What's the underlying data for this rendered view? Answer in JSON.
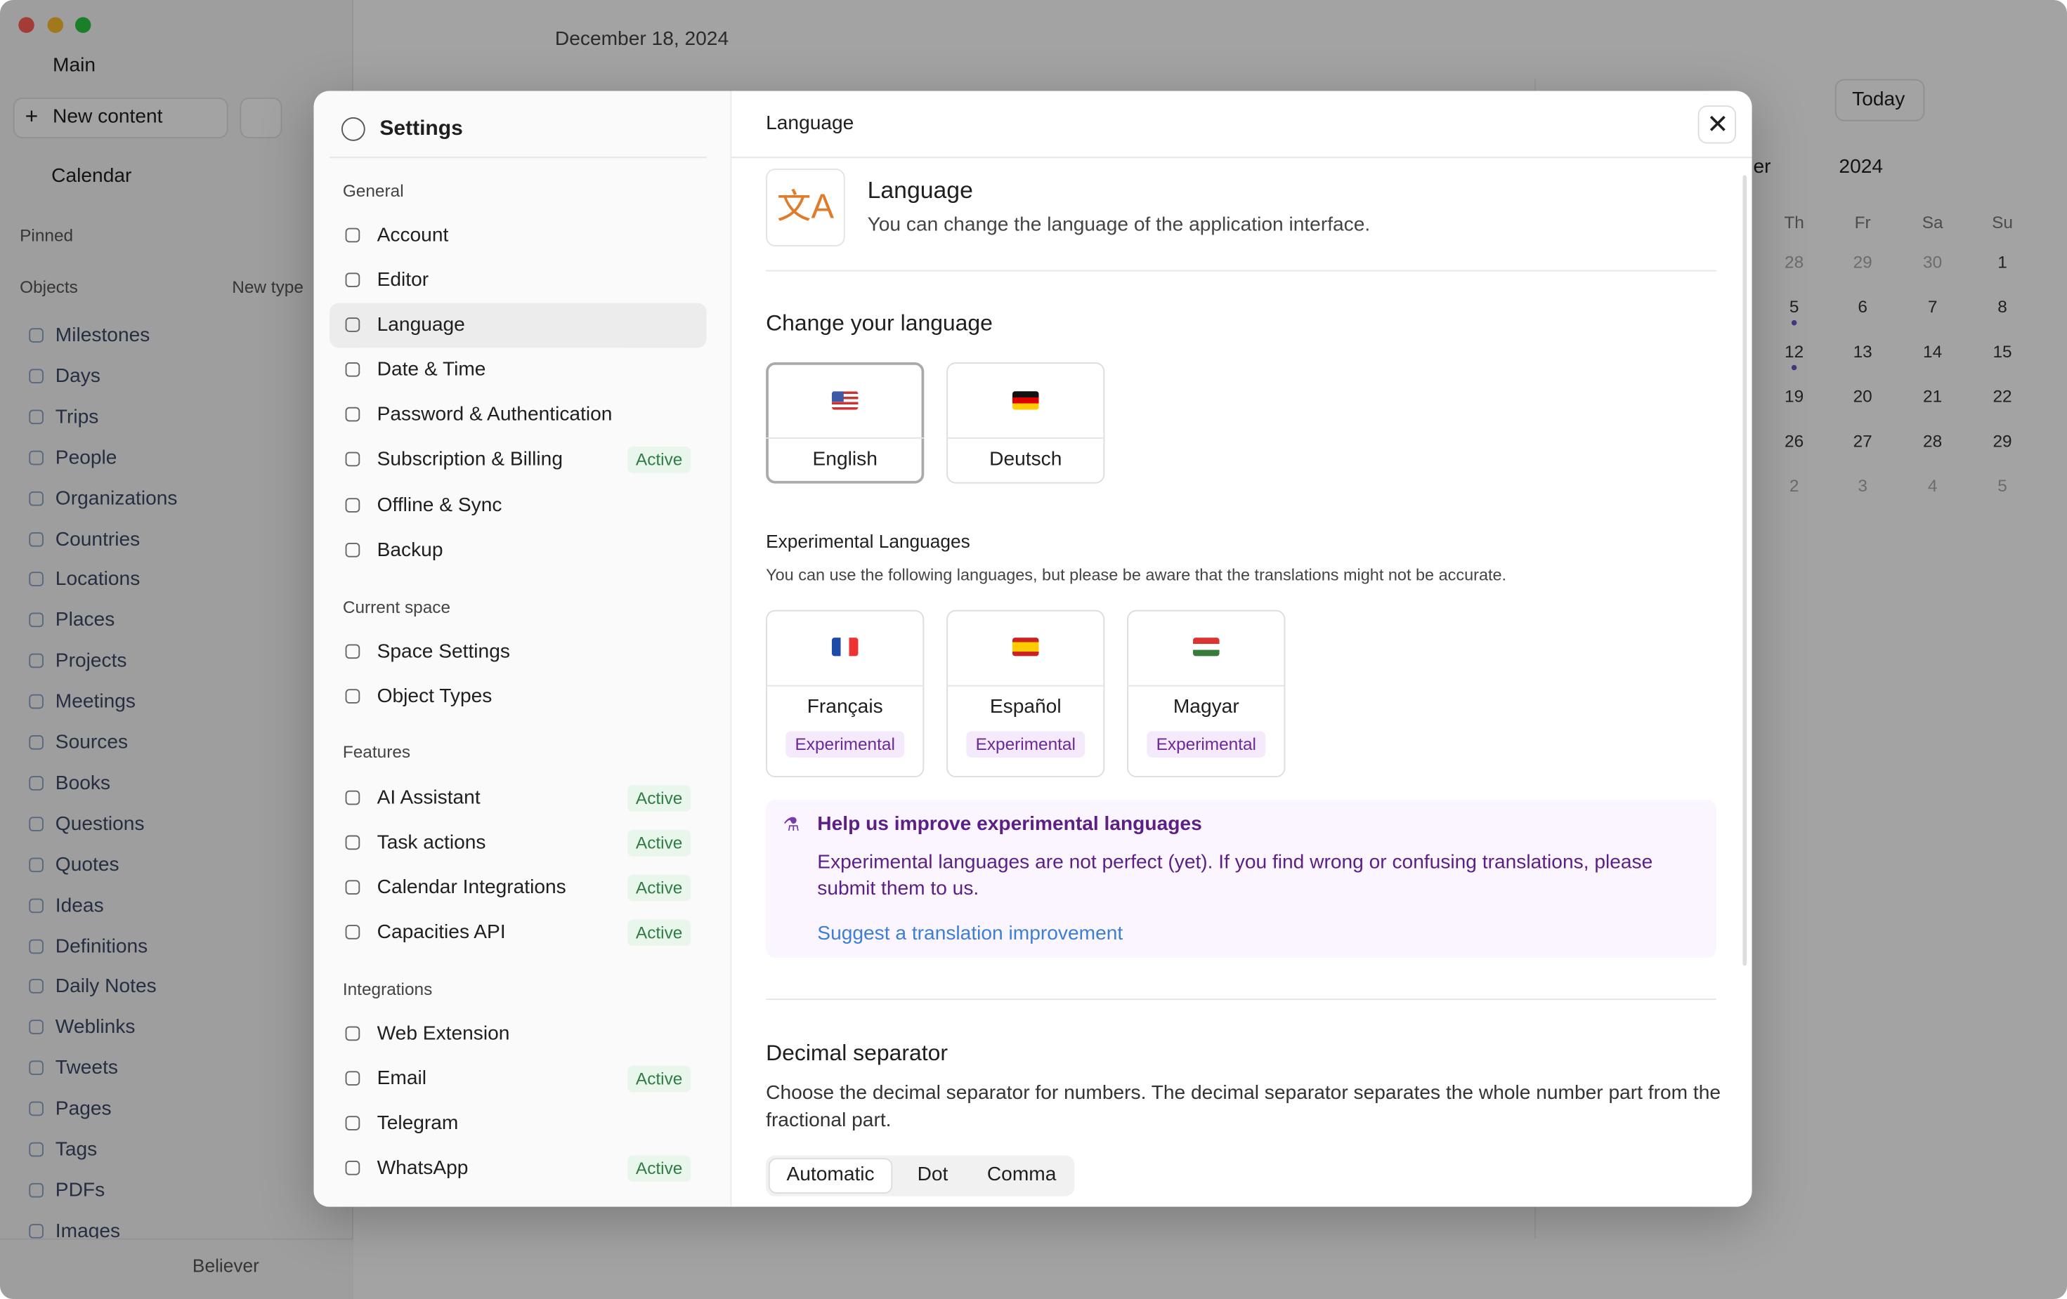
{
  "window": {
    "date": "December 18, 2024"
  },
  "sidebar": {
    "space": "Main",
    "new_content": "New content",
    "calendar": "Calendar",
    "pinned": "Pinned",
    "objects": "Objects",
    "new_type": "New type",
    "items": [
      "Milestones",
      "Days",
      "Trips",
      "People",
      "Organizations",
      "Countries",
      "Locations",
      "Places",
      "Projects",
      "Meetings",
      "Sources",
      "Books",
      "Questions",
      "Quotes",
      "Ideas",
      "Definitions",
      "Daily Notes",
      "Weblinks",
      "Tweets",
      "Pages",
      "Tags",
      "PDFs",
      "Images"
    ],
    "user": "Believer"
  },
  "calendar": {
    "today": "Today",
    "month": "er",
    "year": "2024",
    "weekdays": [
      "Th",
      "Fr",
      "Sa",
      "Su"
    ],
    "weeks": [
      [
        28,
        29,
        30,
        1
      ],
      [
        5,
        6,
        7,
        8
      ],
      [
        12,
        13,
        14,
        15
      ],
      [
        19,
        20,
        21,
        22
      ],
      [
        26,
        27,
        28,
        29
      ],
      [
        2,
        3,
        4,
        5
      ]
    ]
  },
  "settings": {
    "title": "Settings",
    "sections": [
      {
        "heading": "General",
        "items": [
          {
            "label": "Account"
          },
          {
            "label": "Editor"
          },
          {
            "label": "Language",
            "selected": true
          },
          {
            "label": "Date & Time"
          },
          {
            "label": "Password & Authentication"
          },
          {
            "label": "Subscription & Billing",
            "status": "Active"
          },
          {
            "label": "Offline & Sync"
          },
          {
            "label": "Backup"
          }
        ]
      },
      {
        "heading": "Current space",
        "items": [
          {
            "label": "Space Settings"
          },
          {
            "label": "Object Types"
          }
        ]
      },
      {
        "heading": "Features",
        "items": [
          {
            "label": "AI Assistant",
            "status": "Active"
          },
          {
            "label": "Task actions",
            "status": "Active"
          },
          {
            "label": "Calendar Integrations",
            "status": "Active"
          },
          {
            "label": "Capacities API",
            "status": "Active"
          }
        ]
      },
      {
        "heading": "Integrations",
        "items": [
          {
            "label": "Web Extension"
          },
          {
            "label": "Email",
            "status": "Active"
          },
          {
            "label": "Telegram"
          },
          {
            "label": "WhatsApp",
            "status": "Active"
          }
        ]
      }
    ]
  },
  "language": {
    "header": "Language",
    "title": "Language",
    "description": "You can change the language of the application interface.",
    "change_heading": "Change your language",
    "languages": [
      {
        "name": "English",
        "selected": true
      },
      {
        "name": "Deutsch"
      }
    ],
    "experimental_heading": "Experimental Languages",
    "experimental_description": "You can use the following languages, but please be aware that the translations might not be accurate.",
    "experimental": [
      {
        "name": "Français",
        "badge": "Experimental"
      },
      {
        "name": "Español",
        "badge": "Experimental"
      },
      {
        "name": "Magyar",
        "badge": "Experimental"
      }
    ],
    "notice": {
      "title": "Help us improve experimental languages",
      "text": "Experimental languages are not perfect (yet). If you find wrong or confusing translations, please submit them to us.",
      "link": "Suggest a translation improvement"
    },
    "decimal": {
      "heading": "Decimal separator",
      "description": "Choose the decimal separator for numbers. The decimal separator separates the whole number part from the fractional part.",
      "options": [
        "Automatic",
        "Dot",
        "Comma"
      ],
      "selected": 0
    }
  }
}
